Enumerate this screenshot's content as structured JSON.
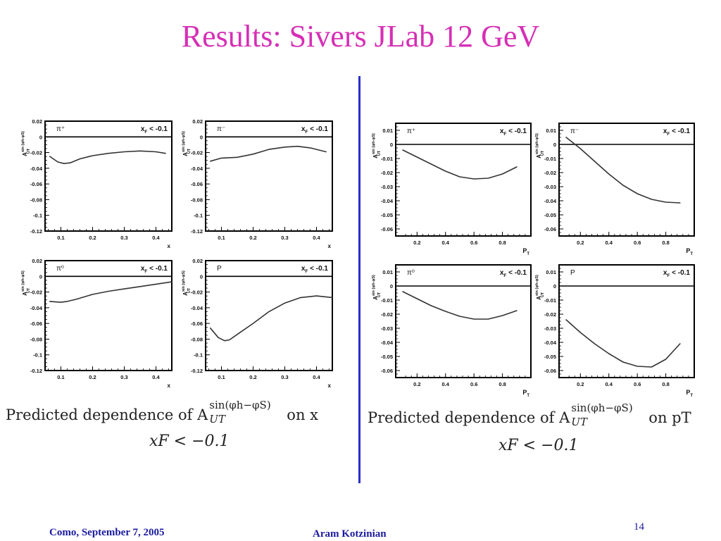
{
  "title": "Results: Sivers JLab 12 GeV",
  "footer": {
    "left": "Como, September 7,  2005",
    "center": "Aram Kotzinian",
    "page": "14"
  },
  "captions": {
    "left_line1": "Predicted dependence of A",
    "left_sup": "sin(φh−φS)",
    "left_sub": "UT",
    "left_tail": "on x",
    "left_line2": "xF < −0.1",
    "right_line1": "Predicted dependence of A",
    "right_sup": "sin(φh−φS)",
    "right_sub": "UT",
    "right_tail": "on pT",
    "right_line2": "xF < −0.1"
  },
  "colors": {
    "title": "#d62fb6",
    "divider": "#2a2fc8",
    "footer": "#1a1aa0",
    "curve": "#333333"
  },
  "chart_data": [
    {
      "id": "x-piplus",
      "type": "line",
      "panel_label": "π⁺",
      "cut_label": "xF < -0.1",
      "xlabel": "x",
      "ylabel": "A_UT^sin(φh-φS)",
      "xlim": [
        0.05,
        0.45
      ],
      "ylim": [
        -0.12,
        0.02
      ],
      "xticks": [
        "0.1",
        "0.2",
        "0.3",
        "0.4"
      ],
      "yticks": [
        "0.02",
        "0",
        "-0.02",
        "-0.04",
        "-0.06",
        "-0.08",
        "-0.1",
        "-0.12"
      ],
      "x": [
        0.065,
        0.09,
        0.11,
        0.13,
        0.16,
        0.2,
        0.25,
        0.3,
        0.35,
        0.4,
        0.43
      ],
      "y": [
        -0.025,
        -0.032,
        -0.034,
        -0.033,
        -0.028,
        -0.024,
        -0.021,
        -0.019,
        -0.018,
        -0.019,
        -0.021
      ]
    },
    {
      "id": "x-piminus",
      "type": "line",
      "panel_label": "π⁻",
      "cut_label": "xF < -0.1",
      "xlabel": "x",
      "ylabel": "A_UT^sin(φh-φS)",
      "xlim": [
        0.05,
        0.45
      ],
      "ylim": [
        -0.12,
        0.02
      ],
      "xticks": [
        "0.1",
        "0.2",
        "0.3",
        "0.4"
      ],
      "yticks": [
        "0.02",
        "0",
        "-0.02",
        "-0.04",
        "-0.06",
        "-0.08",
        "-0.1",
        "-0.12"
      ],
      "x": [
        0.065,
        0.1,
        0.15,
        0.2,
        0.25,
        0.3,
        0.34,
        0.38,
        0.43
      ],
      "y": [
        -0.031,
        -0.027,
        -0.026,
        -0.022,
        -0.016,
        -0.013,
        -0.012,
        -0.014,
        -0.019
      ]
    },
    {
      "id": "x-pizero",
      "type": "line",
      "panel_label": "π⁰",
      "cut_label": "xF < -0.1",
      "xlabel": "x",
      "ylabel": "A_UT^sin(φh-φS)",
      "xlim": [
        0.05,
        0.45
      ],
      "ylim": [
        -0.12,
        0.02
      ],
      "xticks": [
        "0.1",
        "0.2",
        "0.3",
        "0.4"
      ],
      "yticks": [
        "0.02",
        "0",
        "-0.02",
        "-0.04",
        "-0.06",
        "-0.08",
        "-0.1",
        "-0.12"
      ],
      "x": [
        0.065,
        0.1,
        0.12,
        0.15,
        0.2,
        0.25,
        0.3,
        0.35,
        0.4,
        0.45
      ],
      "y": [
        -0.032,
        -0.033,
        -0.032,
        -0.029,
        -0.023,
        -0.019,
        -0.016,
        -0.013,
        -0.01,
        -0.007
      ]
    },
    {
      "id": "x-proton",
      "type": "line",
      "panel_label": "P",
      "cut_label": "xF < -0.1",
      "xlabel": "x",
      "ylabel": "A_UT^sin(φh-φS)",
      "xlim": [
        0.05,
        0.45
      ],
      "ylim": [
        -0.12,
        0.02
      ],
      "xticks": [
        "0.1",
        "0.2",
        "0.3",
        "0.4"
      ],
      "yticks": [
        "0.02",
        "0",
        "-0.02",
        "-0.04",
        "-0.06",
        "-0.08",
        "-0.1",
        "-0.12"
      ],
      "x": [
        0.065,
        0.09,
        0.11,
        0.125,
        0.15,
        0.2,
        0.25,
        0.3,
        0.35,
        0.4,
        0.45
      ],
      "y": [
        -0.066,
        -0.078,
        -0.082,
        -0.081,
        -0.074,
        -0.06,
        -0.045,
        -0.034,
        -0.027,
        -0.025,
        -0.027
      ]
    },
    {
      "id": "pt-piplus",
      "type": "line",
      "panel_label": "π⁺",
      "cut_label": "xF < -0.1",
      "xlabel": "PT",
      "ylabel": "A_UT^sin(φh-φS)",
      "xlim": [
        0.05,
        1.0
      ],
      "ylim": [
        -0.065,
        0.015
      ],
      "xticks": [
        "0.2",
        "0.4",
        "0.6",
        "0.8"
      ],
      "yticks": [
        "0.01",
        "0",
        "-0.01",
        "-0.02",
        "-0.03",
        "-0.04",
        "-0.05",
        "-0.06"
      ],
      "x": [
        0.1,
        0.2,
        0.3,
        0.4,
        0.5,
        0.6,
        0.7,
        0.8,
        0.9
      ],
      "y": [
        -0.004,
        -0.009,
        -0.014,
        -0.019,
        -0.023,
        -0.0245,
        -0.024,
        -0.021,
        -0.016
      ]
    },
    {
      "id": "pt-piminus",
      "type": "line",
      "panel_label": "π⁻",
      "cut_label": "xF < -0.1",
      "xlabel": "PT",
      "ylabel": "A_UT^sin(φh-φS)",
      "xlim": [
        0.05,
        1.0
      ],
      "ylim": [
        -0.065,
        0.015
      ],
      "xticks": [
        "0.2",
        "0.4",
        "0.6",
        "0.8"
      ],
      "yticks": [
        "0.01",
        "0",
        "-0.01",
        "-0.02",
        "-0.03",
        "-0.04",
        "-0.05",
        "-0.06"
      ],
      "x": [
        0.1,
        0.2,
        0.3,
        0.4,
        0.5,
        0.6,
        0.7,
        0.8,
        0.9
      ],
      "y": [
        0.005,
        -0.003,
        -0.012,
        -0.021,
        -0.029,
        -0.035,
        -0.039,
        -0.041,
        -0.0415
      ]
    },
    {
      "id": "pt-pizero",
      "type": "line",
      "panel_label": "π⁰",
      "cut_label": "xF < -0.1",
      "xlabel": "PT",
      "ylabel": "A_UT^sin(φh-φS)",
      "xlim": [
        0.05,
        1.0
      ],
      "ylim": [
        -0.065,
        0.015
      ],
      "xticks": [
        "0.2",
        "0.4",
        "0.6",
        "0.8"
      ],
      "yticks": [
        "0.01",
        "0",
        "-0.01",
        "-0.02",
        "-0.03",
        "-0.04",
        "-0.05",
        "-0.06"
      ],
      "x": [
        0.1,
        0.2,
        0.3,
        0.4,
        0.5,
        0.6,
        0.7,
        0.8,
        0.9
      ],
      "y": [
        -0.004,
        -0.009,
        -0.014,
        -0.018,
        -0.0215,
        -0.0235,
        -0.0235,
        -0.021,
        -0.0175
      ]
    },
    {
      "id": "pt-proton",
      "type": "line",
      "panel_label": "P",
      "cut_label": "xF < -0.1",
      "xlabel": "PT",
      "ylabel": "A_UT^sin(φh-φS)",
      "xlim": [
        0.05,
        1.0
      ],
      "ylim": [
        -0.065,
        0.015
      ],
      "xticks": [
        "0.2",
        "0.4",
        "0.6",
        "0.8"
      ],
      "yticks": [
        "0.01",
        "0",
        "-0.01",
        "-0.02",
        "-0.03",
        "-0.04",
        "-0.05",
        "-0.06"
      ],
      "x": [
        0.1,
        0.2,
        0.3,
        0.4,
        0.5,
        0.6,
        0.7,
        0.8,
        0.9
      ],
      "y": [
        -0.024,
        -0.033,
        -0.041,
        -0.048,
        -0.054,
        -0.057,
        -0.0575,
        -0.052,
        -0.041
      ]
    }
  ]
}
